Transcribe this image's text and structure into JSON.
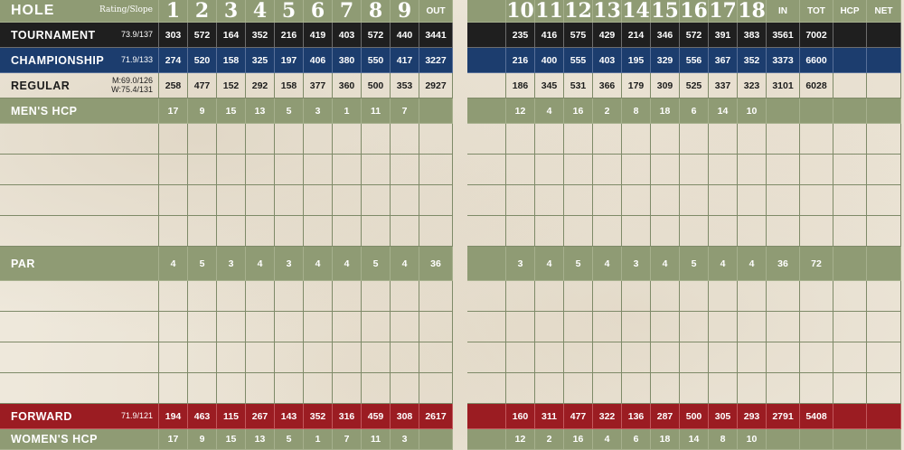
{
  "colors": {
    "green": "#8f9b74",
    "black": "#1f1f1f",
    "blue": "#1c3d6e",
    "red": "#9b1c22"
  },
  "header": {
    "hole_label": "HOLE",
    "rating_slope_label": "Rating/Slope",
    "front_holes": [
      "1",
      "2",
      "3",
      "4",
      "5",
      "6",
      "7",
      "8",
      "9"
    ],
    "out_label": "OUT",
    "back_holes": [
      "10",
      "11",
      "12",
      "13",
      "14",
      "15",
      "16",
      "17",
      "18"
    ],
    "in_label": "IN",
    "tot_label": "TOT",
    "hcp_label": "HCP",
    "net_label": "NET"
  },
  "tees": {
    "tournament": {
      "label": "TOURNAMENT",
      "rating": "73.9/137",
      "front": [
        "303",
        "572",
        "164",
        "352",
        "216",
        "419",
        "403",
        "572",
        "440"
      ],
      "out": "3441",
      "back": [
        "235",
        "416",
        "575",
        "429",
        "214",
        "346",
        "572",
        "391",
        "383"
      ],
      "in": "3561",
      "tot": "7002"
    },
    "championship": {
      "label": "CHAMPIONSHIP",
      "rating": "71.9/133",
      "front": [
        "274",
        "520",
        "158",
        "325",
        "197",
        "406",
        "380",
        "550",
        "417"
      ],
      "out": "3227",
      "back": [
        "216",
        "400",
        "555",
        "403",
        "195",
        "329",
        "556",
        "367",
        "352"
      ],
      "in": "3373",
      "tot": "6600"
    },
    "regular": {
      "label": "REGULAR",
      "rating_m": "M:69.0/126",
      "rating_w": "W:75.4/131",
      "front": [
        "258",
        "477",
        "152",
        "292",
        "158",
        "377",
        "360",
        "500",
        "353"
      ],
      "out": "2927",
      "back": [
        "186",
        "345",
        "531",
        "366",
        "179",
        "309",
        "525",
        "337",
        "323"
      ],
      "in": "3101",
      "tot": "6028"
    },
    "forward": {
      "label": "FORWARD",
      "rating": "71.9/121",
      "front": [
        "194",
        "463",
        "115",
        "267",
        "143",
        "352",
        "316",
        "459",
        "308"
      ],
      "out": "2617",
      "back": [
        "160",
        "311",
        "477",
        "322",
        "136",
        "287",
        "500",
        "305",
        "293"
      ],
      "in": "2791",
      "tot": "5408"
    }
  },
  "mens_hcp": {
    "label": "MEN'S HCP",
    "front": [
      "17",
      "9",
      "15",
      "13",
      "5",
      "3",
      "1",
      "11",
      "7"
    ],
    "back": [
      "12",
      "4",
      "16",
      "2",
      "8",
      "18",
      "6",
      "14",
      "10"
    ]
  },
  "par": {
    "label": "PAR",
    "front": [
      "4",
      "5",
      "3",
      "4",
      "3",
      "4",
      "4",
      "5",
      "4"
    ],
    "out": "36",
    "back": [
      "3",
      "4",
      "5",
      "4",
      "3",
      "4",
      "5",
      "4",
      "4"
    ],
    "in": "36",
    "tot": "72"
  },
  "womens_hcp": {
    "label": "WOMEN'S HCP",
    "front": [
      "17",
      "9",
      "15",
      "13",
      "5",
      "1",
      "7",
      "11",
      "3"
    ],
    "back": [
      "12",
      "2",
      "16",
      "4",
      "6",
      "18",
      "14",
      "8",
      "10"
    ]
  }
}
